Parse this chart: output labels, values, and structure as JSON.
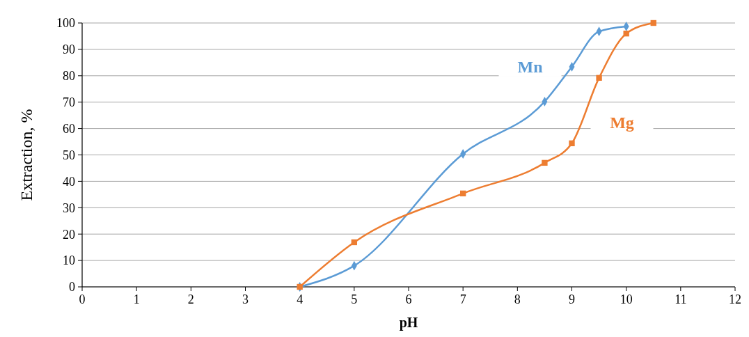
{
  "chart_data": {
    "type": "line",
    "xlabel": "pH",
    "ylabel": "Extraction, %",
    "xlim": [
      0,
      12
    ],
    "xticks": [
      0,
      1,
      2,
      3,
      4,
      5,
      6,
      7,
      8,
      9,
      10,
      11,
      12
    ],
    "ylim": [
      0,
      100
    ],
    "yticks": [
      0,
      10,
      20,
      30,
      40,
      50,
      60,
      70,
      80,
      90,
      100
    ],
    "grid": "y",
    "series": [
      {
        "name": "Mn",
        "color": "#5b9bd5",
        "marker": "diamond",
        "x": [
          4,
          5,
          7,
          8.5,
          9,
          9.5,
          10
        ],
        "values": [
          0,
          8,
          50.4,
          70.2,
          83.4,
          96.8,
          98.7
        ]
      },
      {
        "name": "Mg",
        "color": "#ed7d31",
        "marker": "square",
        "x": [
          4,
          5,
          7,
          8.5,
          9,
          9.5,
          10,
          10.5
        ],
        "values": [
          0,
          16.9,
          35.4,
          47,
          54.4,
          79.2,
          96,
          100
        ]
      }
    ]
  }
}
